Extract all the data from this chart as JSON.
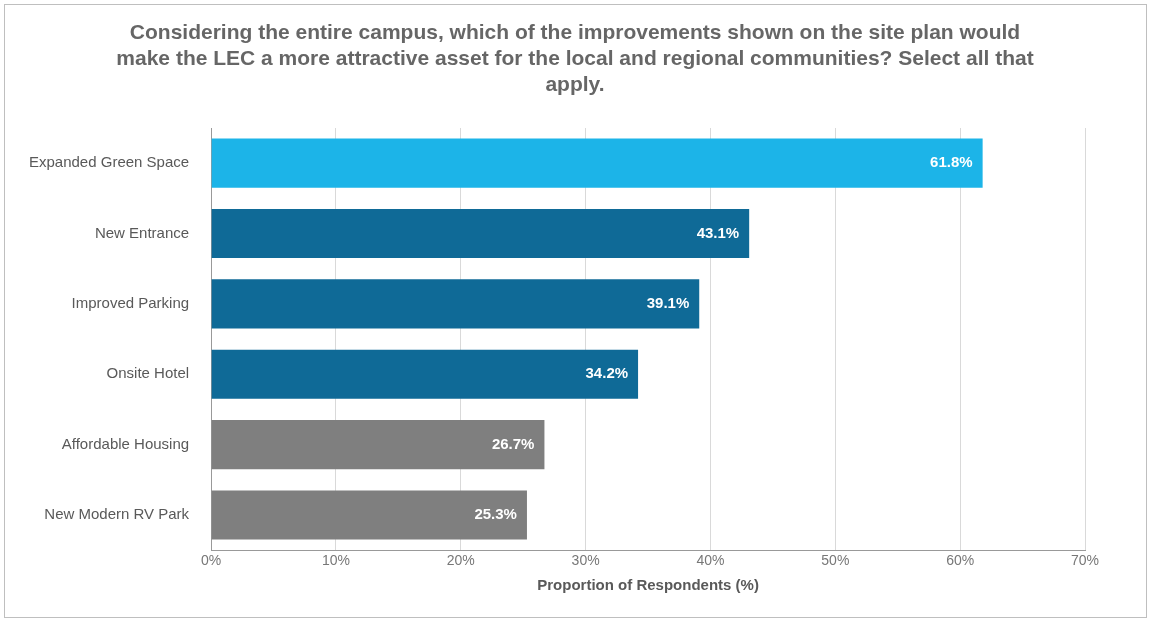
{
  "chart_data": {
    "type": "bar",
    "orientation": "horizontal",
    "title": "Considering the entire campus, which of the improvements shown on the site plan would make the LEC a more attractive asset for the local and regional communities? Select all that apply.",
    "xlabel": "Proportion of Respondents (%)",
    "categories": [
      "Expanded Green Space",
      "New Entrance",
      "Improved Parking",
      "Onsite Hotel",
      "Affordable Housing",
      "New Modern RV Park"
    ],
    "values": [
      61.8,
      43.1,
      39.1,
      34.2,
      26.7,
      25.3
    ],
    "colors": [
      "#1cb4e8",
      "#0f6a97",
      "#0f6a97",
      "#0f6a97",
      "#7f7f7f",
      "#7f7f7f"
    ],
    "value_labels": [
      "61.8%",
      "43.1%",
      "39.1%",
      "34.2%",
      "26.7%",
      "25.3%"
    ],
    "xlim": [
      0,
      70
    ],
    "xticks": [
      {
        "value": 0,
        "label": "0%"
      },
      {
        "value": 10,
        "label": "10%"
      },
      {
        "value": 20,
        "label": "20%"
      },
      {
        "value": 30,
        "label": "30%"
      },
      {
        "value": 40,
        "label": "40%"
      },
      {
        "value": 50,
        "label": "50%"
      },
      {
        "value": 60,
        "label": "60%"
      },
      {
        "value": 70,
        "label": "70%"
      }
    ],
    "grid": "x",
    "legend": false
  }
}
